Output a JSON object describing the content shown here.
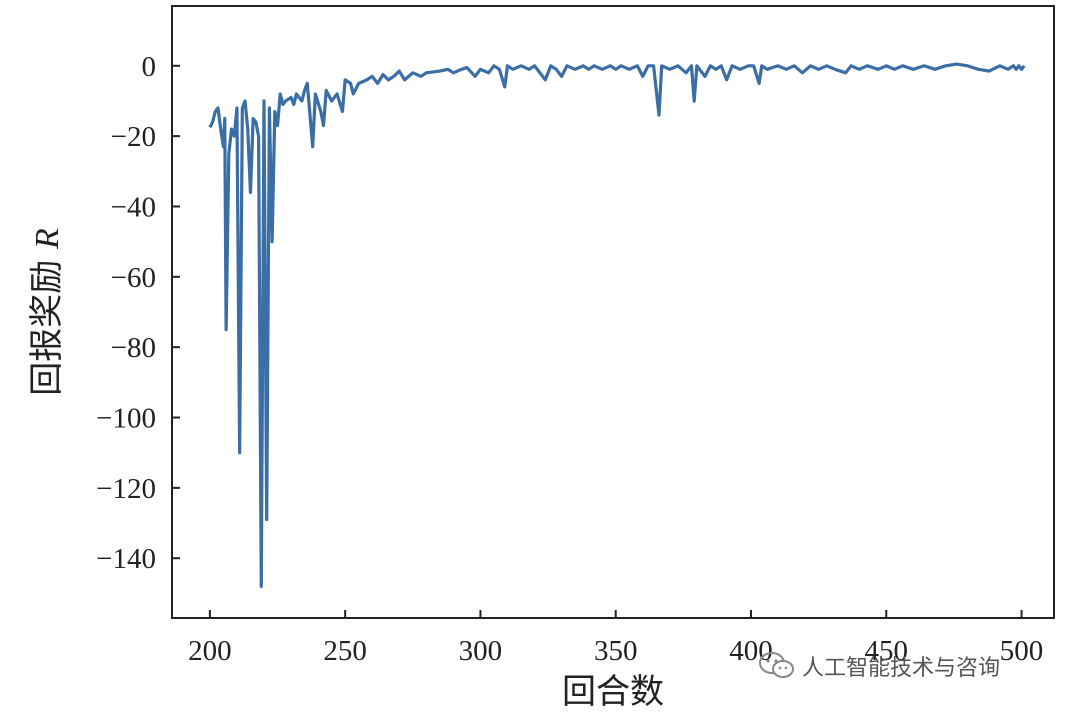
{
  "chart_data": {
    "type": "line",
    "xlabel": "回合数",
    "ylabel": "回报奖励 R",
    "ylabel_main": "回报奖励 ",
    "ylabel_italic": "R",
    "xlim": [
      186,
      512
    ],
    "ylim": [
      -157,
      17
    ],
    "x_ticks": [
      200,
      250,
      300,
      350,
      400,
      450,
      500
    ],
    "y_ticks": [
      0,
      -20,
      -40,
      -60,
      -80,
      -100,
      -120,
      -140
    ],
    "x_tick_labels": [
      "200",
      "250",
      "300",
      "350",
      "400",
      "450",
      "500"
    ],
    "y_tick_labels": [
      "0",
      "−20",
      "−40",
      "−60",
      "−80",
      "−100",
      "−120",
      "−140"
    ],
    "grid": false,
    "line_color": "#3a6ea5",
    "series": [
      {
        "points": [
          [
            200,
            -17.5
          ],
          [
            201,
            -16
          ],
          [
            202,
            -13
          ],
          [
            203,
            -12
          ],
          [
            204,
            -18
          ],
          [
            205,
            -23
          ],
          [
            205.5,
            -15
          ],
          [
            206,
            -75
          ],
          [
            207,
            -25
          ],
          [
            208,
            -18
          ],
          [
            209,
            -20
          ],
          [
            210,
            -12
          ],
          [
            211,
            -110
          ],
          [
            212,
            -12
          ],
          [
            213,
            -10
          ],
          [
            214,
            -18
          ],
          [
            215,
            -36
          ],
          [
            216,
            -15
          ],
          [
            217,
            -16
          ],
          [
            218,
            -20
          ],
          [
            219,
            -148
          ],
          [
            220,
            -10
          ],
          [
            221,
            -129
          ],
          [
            222,
            -12
          ],
          [
            223,
            -50
          ],
          [
            224,
            -13
          ],
          [
            225,
            -17
          ],
          [
            226,
            -8
          ],
          [
            227,
            -11
          ],
          [
            228,
            -10
          ],
          [
            230,
            -9
          ],
          [
            231,
            -11
          ],
          [
            232,
            -8
          ],
          [
            234,
            -10
          ],
          [
            235,
            -7
          ],
          [
            236,
            -5
          ],
          [
            238,
            -23
          ],
          [
            239,
            -8
          ],
          [
            241,
            -13
          ],
          [
            242,
            -17
          ],
          [
            243,
            -7
          ],
          [
            245,
            -10
          ],
          [
            247,
            -8
          ],
          [
            249,
            -13
          ],
          [
            250,
            -4
          ],
          [
            252,
            -5
          ],
          [
            253,
            -8
          ],
          [
            255,
            -5
          ],
          [
            258,
            -4
          ],
          [
            260,
            -3
          ],
          [
            262,
            -5
          ],
          [
            264,
            -2.5
          ],
          [
            266,
            -4
          ],
          [
            268,
            -3
          ],
          [
            270,
            -1.5
          ],
          [
            272,
            -4
          ],
          [
            275,
            -2
          ],
          [
            278,
            -3
          ],
          [
            280,
            -2
          ],
          [
            285,
            -1.5
          ],
          [
            288,
            -1
          ],
          [
            290,
            -2
          ],
          [
            293,
            -1
          ],
          [
            295,
            -0.5
          ],
          [
            298,
            -3
          ],
          [
            300,
            -1
          ],
          [
            303,
            -2
          ],
          [
            305,
            0
          ],
          [
            307,
            -1
          ],
          [
            309,
            -6
          ],
          [
            310,
            0
          ],
          [
            312,
            -1
          ],
          [
            315,
            0
          ],
          [
            318,
            -1
          ],
          [
            320,
            0
          ],
          [
            322,
            -2
          ],
          [
            324,
            -4
          ],
          [
            326,
            0
          ],
          [
            328,
            -1
          ],
          [
            330,
            -3
          ],
          [
            332,
            0
          ],
          [
            335,
            -1
          ],
          [
            338,
            0
          ],
          [
            340,
            -1
          ],
          [
            342,
            0
          ],
          [
            345,
            -1
          ],
          [
            348,
            0
          ],
          [
            350,
            -1
          ],
          [
            352,
            0
          ],
          [
            355,
            -1
          ],
          [
            358,
            0
          ],
          [
            360,
            -3
          ],
          [
            362,
            0
          ],
          [
            364,
            0
          ],
          [
            366,
            -14
          ],
          [
            367,
            0
          ],
          [
            370,
            -1
          ],
          [
            373,
            0
          ],
          [
            376,
            -2
          ],
          [
            378,
            0
          ],
          [
            379,
            -10
          ],
          [
            380,
            0
          ],
          [
            383,
            -3
          ],
          [
            385,
            0
          ],
          [
            387,
            -1
          ],
          [
            389,
            0
          ],
          [
            391,
            -4
          ],
          [
            393,
            0
          ],
          [
            396,
            -1
          ],
          [
            399,
            0
          ],
          [
            401,
            0
          ],
          [
            403,
            -5
          ],
          [
            404,
            0
          ],
          [
            406,
            -1
          ],
          [
            410,
            0
          ],
          [
            413,
            -1
          ],
          [
            416,
            0
          ],
          [
            419,
            -2
          ],
          [
            422,
            0
          ],
          [
            425,
            -1
          ],
          [
            428,
            0
          ],
          [
            431,
            -1
          ],
          [
            435,
            -2
          ],
          [
            437,
            0
          ],
          [
            440,
            -1
          ],
          [
            443,
            0
          ],
          [
            447,
            -1
          ],
          [
            450,
            0
          ],
          [
            453,
            -1
          ],
          [
            456,
            0
          ],
          [
            460,
            -1
          ],
          [
            464,
            0
          ],
          [
            468,
            -1
          ],
          [
            472,
            0
          ],
          [
            476,
            0.5
          ],
          [
            480,
            0
          ],
          [
            484,
            -1
          ],
          [
            488,
            -1.5
          ],
          [
            492,
            0
          ],
          [
            495,
            -1
          ],
          [
            497,
            0
          ],
          [
            498,
            -1
          ],
          [
            499,
            0
          ],
          [
            500,
            -1
          ],
          [
            501,
            0
          ]
        ]
      }
    ]
  },
  "watermark": {
    "text": "人工智能技术与咨询",
    "icon": "wechat-icon"
  }
}
